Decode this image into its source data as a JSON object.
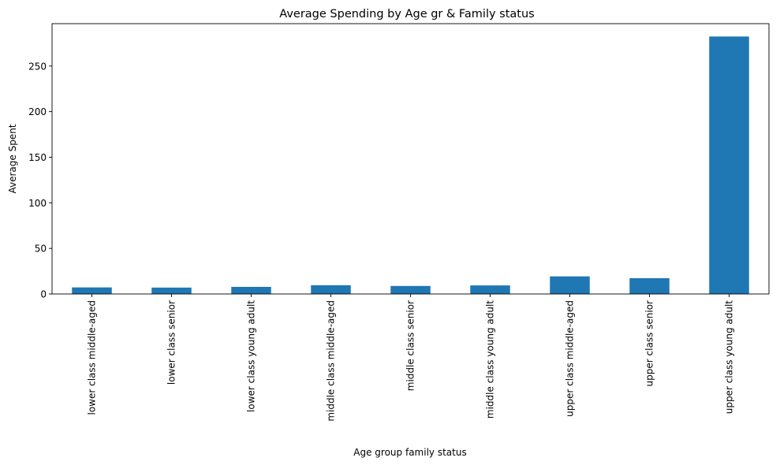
{
  "chart_data": {
    "type": "bar",
    "title": "Average Spending by Age gr & Family status",
    "xlabel": "Age group family status",
    "ylabel": "Average Spent",
    "categories": [
      "lower class middle-aged",
      "lower class senior",
      "lower class young adult",
      "middle class middle-aged",
      "middle class senior",
      "middle class young adult",
      "upper class middle-aged",
      "upper class senior",
      "upper class young adult"
    ],
    "values": [
      7.2,
      7.0,
      7.8,
      9.6,
      8.8,
      9.4,
      19.3,
      17.3,
      282.4
    ],
    "ylim": [
      0,
      296.5
    ],
    "yticks": [
      0,
      50,
      100,
      150,
      200,
      250
    ],
    "grid": false,
    "legend": "none",
    "bar_color": "#1f77b4"
  }
}
